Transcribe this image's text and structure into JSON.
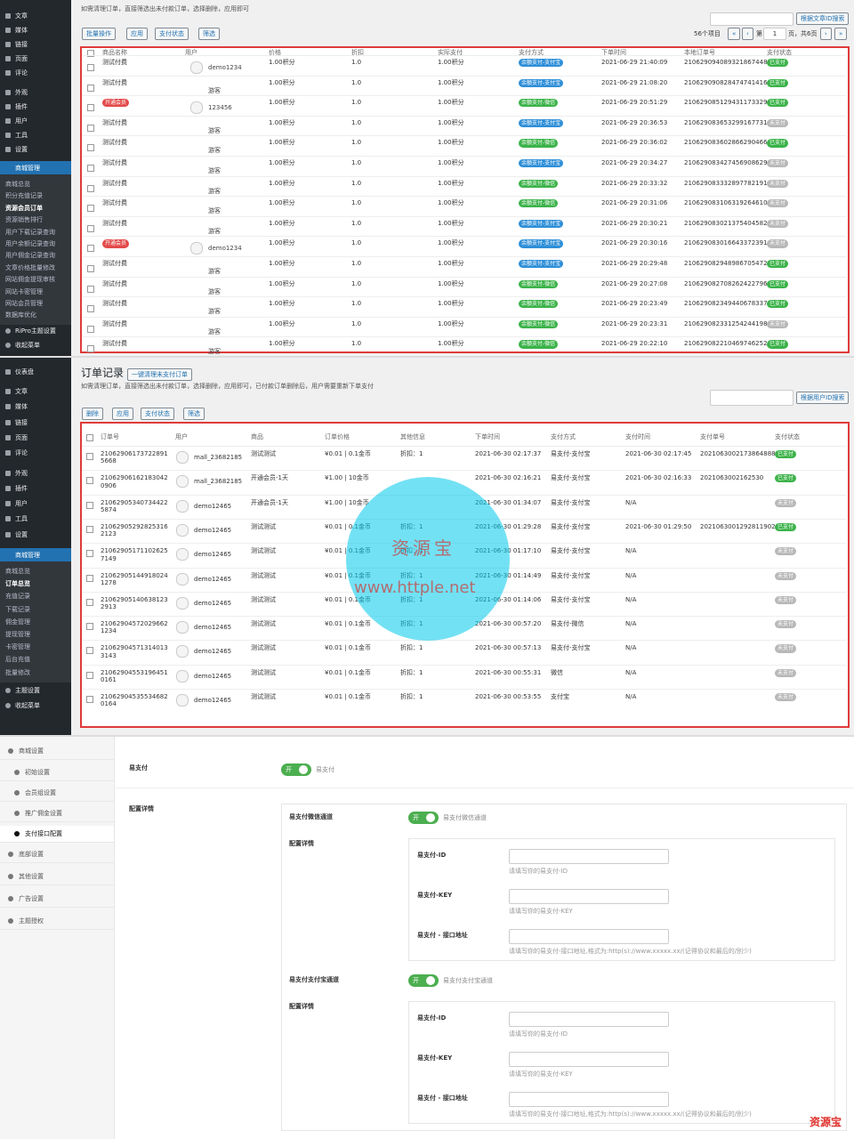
{
  "panel1": {
    "sidebar": {
      "menu_top": [
        "文章",
        "媒体",
        "链接",
        "页面",
        "评论",
        "外观",
        "插件",
        "用户",
        "工具",
        "设置"
      ],
      "active_menu": "商城管理",
      "submenu": [
        {
          "label": "商城总览"
        },
        {
          "label": "积分充值记录"
        },
        {
          "label": "资源会员订单",
          "current": true
        },
        {
          "label": "资源销售排行"
        },
        {
          "label": "用户下载记录查询"
        },
        {
          "label": "用户余额记录查询"
        },
        {
          "label": "用户佣金记录查询"
        },
        {
          "label": "文章价格批量修改"
        },
        {
          "label": "网站佣金提现审核"
        },
        {
          "label": "网站卡密管理"
        },
        {
          "label": "网站会员管理"
        },
        {
          "label": "数据库优化"
        }
      ],
      "menu_bottom": [
        "RiPro主题设置",
        "收起菜单"
      ]
    },
    "description": "如需清理订单，直接筛选出未付款订单，选择删除，应用即可",
    "toolbar": {
      "bulk": "批量操作",
      "apply": "应用",
      "status_filter": "支付状态",
      "filter": "筛选",
      "search_button": "根据文章ID搜索",
      "count": "56个项目",
      "first": "«",
      "prev": "‹",
      "page_prefix": "第",
      "page": "1",
      "page_suffix": "页，共6页",
      "next": "›",
      "last": "»"
    },
    "columns": [
      "商品名称",
      "用户",
      "价格",
      "折扣",
      "实际支付",
      "支付方式",
      "下单时间",
      "本地订单号",
      "支付状态"
    ],
    "rows": [
      {
        "product": "测试付费",
        "user": "demo1234",
        "avatar": true,
        "price": "1.00积分",
        "discount": "1.0",
        "paid": "1.00积分",
        "method": "余额支付-支付宝",
        "method_color": "#2e8fd8",
        "time": "2021-06-29 21:40:09",
        "order": "210629094089321867448",
        "status": "已支付",
        "status_color": "#3cb34a"
      },
      {
        "product": "测试付费",
        "user": "游客",
        "price": "1.00积分",
        "discount": "1.0",
        "paid": "1.00积分",
        "method": "余额支付-支付宝",
        "method_color": "#2e8fd8",
        "time": "2021-06-29 21:08:20",
        "order": "210629090828474741416",
        "status": "已支付",
        "status_color": "#3cb34a"
      },
      {
        "product": "开通会员",
        "badge": true,
        "user": "123456",
        "avatar": true,
        "price": "1.00积分",
        "discount": "1.0",
        "paid": "1.00积分",
        "method": "余额支付-微信",
        "method_color": "#3cb34a",
        "time": "2021-06-29 20:51:29",
        "order": "210629085129431173329",
        "status": "已支付",
        "status_color": "#3cb34a"
      },
      {
        "product": "测试付费",
        "user": "游客",
        "price": "1.00积分",
        "discount": "1.0",
        "paid": "1.00积分",
        "method": "余额支付-支付宝",
        "method_color": "#2e8fd8",
        "time": "2021-06-29 20:36:53",
        "order": "210629083653299167731",
        "status": "未支付",
        "status_color": "#b8b8b8"
      },
      {
        "product": "测试付费",
        "user": "游客",
        "price": "1.00积分",
        "discount": "1.0",
        "paid": "1.00积分",
        "method": "余额支付-微信",
        "method_color": "#3cb34a",
        "time": "2021-06-29 20:36:02",
        "order": "210629083602866290466",
        "status": "已支付",
        "status_color": "#3cb34a"
      },
      {
        "product": "测试付费",
        "user": "游客",
        "price": "1.00积分",
        "discount": "1.0",
        "paid": "1.00积分",
        "method": "余额支付-支付宝",
        "method_color": "#2e8fd8",
        "time": "2021-06-29 20:34:27",
        "order": "210629083427456908629",
        "status": "未支付",
        "status_color": "#b8b8b8"
      },
      {
        "product": "测试付费",
        "user": "游客",
        "price": "1.00积分",
        "discount": "1.0",
        "paid": "1.00积分",
        "method": "余额支付-微信",
        "method_color": "#3cb34a",
        "time": "2021-06-29 20:33:32",
        "order": "210629083332897782191",
        "status": "未支付",
        "status_color": "#b8b8b8"
      },
      {
        "product": "测试付费",
        "user": "游客",
        "price": "1.00积分",
        "discount": "1.0",
        "paid": "1.00积分",
        "method": "余额支付-微信",
        "method_color": "#3cb34a",
        "time": "2021-06-29 20:31:06",
        "order": "210629083106319264610",
        "status": "未支付",
        "status_color": "#b8b8b8"
      },
      {
        "product": "测试付费",
        "user": "游客",
        "price": "1.00积分",
        "discount": "1.0",
        "paid": "1.00积分",
        "method": "余额支付-支付宝",
        "method_color": "#2e8fd8",
        "time": "2021-06-29 20:30:21",
        "order": "210629083021375404582",
        "status": "未支付",
        "status_color": "#b8b8b8"
      },
      {
        "product": "开通会员",
        "badge": true,
        "user": "demo1234",
        "avatar": true,
        "price": "1.00积分",
        "discount": "1.0",
        "paid": "1.00积分",
        "method": "余额支付-支付宝",
        "method_color": "#2e8fd8",
        "time": "2021-06-29 20:30:16",
        "order": "210629083016643372391",
        "status": "未支付",
        "status_color": "#b8b8b8"
      },
      {
        "product": "测试付费",
        "user": "游客",
        "price": "1.00积分",
        "discount": "1.0",
        "paid": "1.00积分",
        "method": "余额支付-支付宝",
        "method_color": "#2e8fd8",
        "time": "2021-06-29 20:29:48",
        "order": "210629082948986705472",
        "status": "已支付",
        "status_color": "#3cb34a"
      },
      {
        "product": "测试付费",
        "user": "游客",
        "price": "1.00积分",
        "discount": "1.0",
        "paid": "1.00积分",
        "method": "余额支付-微信",
        "method_color": "#3cb34a",
        "time": "2021-06-29 20:27:08",
        "order": "210629082708262422796",
        "status": "已支付",
        "status_color": "#3cb34a"
      },
      {
        "product": "测试付费",
        "user": "游客",
        "price": "1.00积分",
        "discount": "1.0",
        "paid": "1.00积分",
        "method": "余额支付-微信",
        "method_color": "#3cb34a",
        "time": "2021-06-29 20:23:49",
        "order": "210629082349440678337",
        "status": "已支付",
        "status_color": "#3cb34a"
      },
      {
        "product": "测试付费",
        "user": "游客",
        "price": "1.00积分",
        "discount": "1.0",
        "paid": "1.00积分",
        "method": "余额支付-微信",
        "method_color": "#3cb34a",
        "time": "2021-06-29 20:23:31",
        "order": "210629082331254244198",
        "status": "未支付",
        "status_color": "#b8b8b8"
      },
      {
        "product": "测试付费",
        "user": "游客",
        "price": "1.00积分",
        "discount": "1.0",
        "paid": "1.00积分",
        "method": "余额支付-微信",
        "method_color": "#3cb34a",
        "time": "2021-06-29 20:22:10",
        "order": "210629082210469746252",
        "status": "已支付",
        "status_color": "#3cb34a"
      }
    ]
  },
  "panel2": {
    "sidebar": {
      "menu_top": [
        "仪表盘",
        "文章",
        "媒体",
        "链接",
        "页面",
        "评论",
        "外观",
        "插件",
        "用户",
        "工具",
        "设置"
      ],
      "active_menu": "商城管理",
      "submenu": [
        {
          "label": "商城总览"
        },
        {
          "label": "订单总览",
          "current": true
        },
        {
          "label": "充值记录"
        },
        {
          "label": "下载记录"
        },
        {
          "label": "佣金管理"
        },
        {
          "label": "提现管理"
        },
        {
          "label": "卡密管理"
        },
        {
          "label": "后台充值"
        },
        {
          "label": "批量修改"
        }
      ],
      "menu_bottom": [
        "主题设置",
        "收起菜单"
      ]
    },
    "title": "订单记录",
    "clean_button": "一键清理未支付订单",
    "description": "如需清理订单，直接筛选出未付款订单，选择删除，应用即可，已付款订单删除后，用户需要重新下单支付",
    "toolbar": {
      "bulk": "删除",
      "apply": "应用",
      "status_filter": "支付状态",
      "filter": "筛选",
      "search_button": "根据用户ID搜索"
    },
    "columns": [
      "订单号",
      "用户",
      "商品",
      "订单价格",
      "其他信息",
      "下单时间",
      "支付方式",
      "支付时间",
      "支付单号",
      "支付状态"
    ],
    "rows": [
      {
        "order": "210629061737228915668",
        "user": "mall_23682185",
        "product": "测试测试",
        "price": "¥0.01 | 0.1金币",
        "info": "折扣：1",
        "time": "2021-06-30 02:17:37",
        "method": "易支付-支付宝",
        "pay_time": "2021-06-30 02:17:45",
        "pay_no": "2021063002173864888",
        "status": "已支付",
        "status_color": "#3cb34a"
      },
      {
        "order": "210629061621830420906",
        "user": "mall_23682185",
        "product": "开通会员-1天",
        "price": "¥1.00 | 10金币",
        "time": "2021-06-30 02:16:21",
        "method": "易支付-支付宝",
        "pay_time": "2021-06-30 02:16:33",
        "pay_no": "2021063002162530",
        "status": "已支付",
        "status_color": "#3cb34a"
      },
      {
        "order": "210629053407344225874",
        "user": "demo12465",
        "product": "开通会员-1天",
        "price": "¥1.00 | 10金币",
        "time": "2021-06-30 01:34:07",
        "method": "易支付-支付宝",
        "pay_time": "N/A",
        "status": "未支付",
        "status_color": "#b8b8b8"
      },
      {
        "order": "210629052928253162123",
        "user": "demo12465",
        "product": "测试测试",
        "price": "¥0.01 | 0.1金币",
        "info": "折扣：1",
        "time": "2021-06-30 01:29:28",
        "method": "易支付-支付宝",
        "pay_time": "2021-06-30 01:29:50",
        "pay_no": "2021063001292811902",
        "status": "已支付",
        "status_color": "#3cb34a"
      },
      {
        "order": "210629051711026257149",
        "user": "demo12465",
        "product": "测试测试",
        "price": "¥0.01 | 0.1金币",
        "info": "折扣：1",
        "time": "2021-06-30 01:17:10",
        "method": "易支付-支付宝",
        "pay_time": "N/A",
        "status": "未支付",
        "status_color": "#b8b8b8"
      },
      {
        "order": "210629051449180241278",
        "user": "demo12465",
        "product": "测试测试",
        "price": "¥0.01 | 0.1金币",
        "info": "折扣：1",
        "time": "2021-06-30 01:14:49",
        "method": "易支付-支付宝",
        "pay_time": "N/A",
        "status": "未支付",
        "status_color": "#b8b8b8"
      },
      {
        "order": "210629051406381232913",
        "user": "demo12465",
        "product": "测试测试",
        "price": "¥0.01 | 0.1金币",
        "info": "折扣：1",
        "time": "2021-06-30 01:14:06",
        "method": "易支付-支付宝",
        "pay_time": "N/A",
        "status": "未支付",
        "status_color": "#b8b8b8"
      },
      {
        "order": "210629045720296621234",
        "user": "demo12465",
        "product": "测试测试",
        "price": "¥0.01 | 0.1金币",
        "info": "折扣：1",
        "time": "2021-06-30 00:57:20",
        "method": "易支付-微信",
        "pay_time": "N/A",
        "status": "未支付",
        "status_color": "#b8b8b8"
      },
      {
        "order": "210629045713140133143",
        "user": "demo12465",
        "product": "测试测试",
        "price": "¥0.01 | 0.1金币",
        "info": "折扣：1",
        "time": "2021-06-30 00:57:13",
        "method": "易支付-支付宝",
        "pay_time": "N/A",
        "status": "未支付",
        "status_color": "#b8b8b8"
      },
      {
        "order": "210629045531964510161",
        "user": "demo12465",
        "product": "测试测试",
        "price": "¥0.01 | 0.1金币",
        "info": "折扣：1",
        "time": "2021-06-30 00:55:31",
        "method": "微信",
        "pay_time": "N/A",
        "status": "未支付",
        "status_color": "#b8b8b8"
      },
      {
        "order": "210629045355346820164",
        "user": "demo12465",
        "product": "测试测试",
        "price": "¥0.01 | 0.1金币",
        "info": "折扣：1",
        "time": "2021-06-30 00:53:55",
        "method": "支付宝",
        "pay_time": "N/A",
        "status": "未支付",
        "status_color": "#b8b8b8"
      }
    ],
    "watermark": {
      "name": "资源宝",
      "url": "www.httple.net"
    }
  },
  "panel3": {
    "nav": [
      {
        "label": "商城设置",
        "level": 1
      },
      {
        "label": "初始设置",
        "level": 2
      },
      {
        "label": "会员组设置",
        "level": 2
      },
      {
        "label": "推广佣金设置",
        "level": 2
      },
      {
        "label": "支付接口配置",
        "level": 2,
        "current": true
      },
      {
        "label": "底部设置",
        "level": 1
      },
      {
        "label": "其他设置",
        "level": 1
      },
      {
        "label": "广告设置",
        "level": 1
      },
      {
        "label": "主题授权",
        "level": 1
      }
    ],
    "main_label": "易支付",
    "switch_on": "开",
    "main_switch_text": "易支付",
    "config_label": "配置详情",
    "channels": [
      {
        "name": "易支付微信通道",
        "switch_text": "易支付微信通道",
        "config_label": "配置详情",
        "fields": [
          {
            "label": "易支付-ID",
            "hint": "请填写你的易支付-ID"
          },
          {
            "label": "易支付-KEY",
            "hint": "请填写你的易支付-KEY"
          },
          {
            "label": "易支付 - 接口地址",
            "hint": "请填写你的易支付-接口地址,格式为:http(s)://www.xxxxx.xx/(记得协议和最后的/别少)"
          }
        ]
      },
      {
        "name": "易支付支付宝通道",
        "switch_text": "易支付支付宝通道",
        "config_label": "配置详情",
        "fields": [
          {
            "label": "易支付-ID",
            "hint": "请填写你的易支付-ID"
          },
          {
            "label": "易支付-KEY",
            "hint": "请填写你的易支付-KEY"
          },
          {
            "label": "易支付 - 接口地址",
            "hint": "请填写你的易支付-接口地址,格式为:http(s)://www.xxxxx.xx/(记得协议和最后的/别少)"
          }
        ]
      }
    ],
    "watermark": "资源宝"
  }
}
